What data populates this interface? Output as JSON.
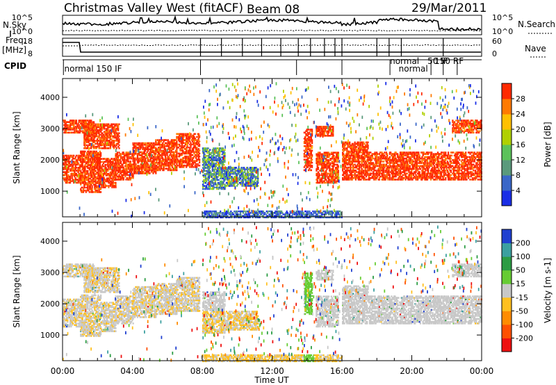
{
  "header": {
    "title": "Christmas Valley West (fitACF)",
    "beam": "Beam 08",
    "date": "29/Mar/2011"
  },
  "strip_labels": {
    "nsky": "N.Sky",
    "nsearch": "N.Search",
    "freq": "Freq.",
    "freq_unit": "[MHz]",
    "nave": "Nave",
    "cpid": "CPID"
  },
  "strip_ticks": {
    "noise_left": [
      "10^5",
      "10^0"
    ],
    "noise_right": [
      "10^5",
      "10^0"
    ],
    "freq_left": [
      "18",
      "8"
    ],
    "freq_right": [
      "60",
      "0"
    ]
  },
  "cpid_labels": [
    {
      "text": "normal 150 IF",
      "hour": 0.1
    },
    {
      "text": "normal",
      "hour": 18.75
    },
    {
      "text": "normal",
      "hour": 19.25
    },
    {
      "text": "150 RF",
      "hour": 21.3
    },
    {
      "text": "50 IF",
      "hour": 20.9
    }
  ],
  "chart_data": {
    "type": "heatmap",
    "xlabel": "Time UT",
    "x_ticks": [
      "00:00",
      "04:00",
      "08:00",
      "12:00",
      "16:00",
      "20:00",
      "00:00"
    ],
    "xlim_hours": [
      0,
      24
    ],
    "ylabel": "Slant Range [km]",
    "y_ticks": [
      1000,
      2000,
      3000,
      4000
    ],
    "ylim_km": [
      180,
      4600
    ],
    "panels": [
      {
        "name": "power",
        "colorbar_label": "Power [dB]",
        "colorbar_ticks": [
          "4",
          "8",
          "12",
          "16",
          "20",
          "24",
          "28"
        ],
        "colors": [
          "#1a2ee6",
          "#3a67c8",
          "#5a9a7c",
          "#5cc25a",
          "#b0d000",
          "#ffc000",
          "#ff7a00",
          "#ff2a00"
        ]
      },
      {
        "name": "velocity",
        "colorbar_label": "Velocity [m s-1]",
        "colorbar_ticks": [
          "200",
          "100",
          "50",
          "15",
          "-15",
          "-50",
          "-100",
          "-200"
        ],
        "colors": [
          "#2040d0",
          "#3ca0a0",
          "#2c9c44",
          "#66cc33",
          "#c8c8c8",
          "#ffc020",
          "#ff8c00",
          "#ff5000",
          "#ee1010"
        ]
      }
    ]
  }
}
